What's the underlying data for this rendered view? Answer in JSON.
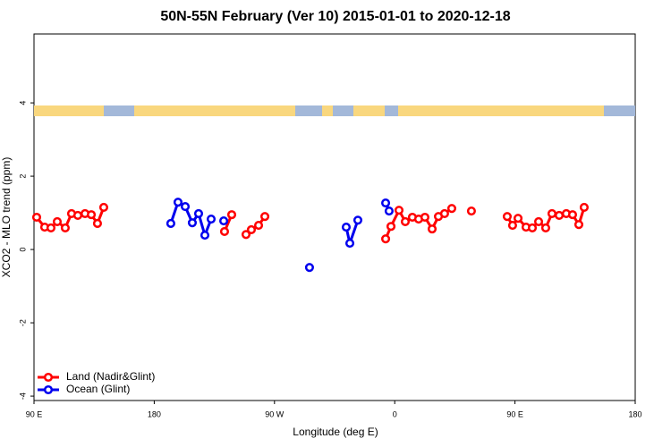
{
  "chart_data": {
    "type": "line",
    "title": "50N-55N February (Ver 10)   2015-01-01 to 2020-12-18",
    "x_label": "Longitude (deg E)",
    "y_label": "XCO2 - MLO trend (ppm)",
    "xlim": [
      90,
      540
    ],
    "xticks": [
      {
        "value": 90,
        "label": "90 E"
      },
      {
        "value": 180,
        "label": "180"
      },
      {
        "value": 270,
        "label": "90 W"
      },
      {
        "value": 360,
        "label": "0"
      },
      {
        "value": 450,
        "label": "90 E"
      },
      {
        "value": 540,
        "label": "180"
      }
    ],
    "ylim": [
      -4.12,
      5.88
    ],
    "yticks": [
      -4,
      -2,
      0,
      2,
      4
    ],
    "legend": "bottom-left",
    "series": [
      {
        "name": "Land (Nadir&Glint)",
        "color": "#ff0000",
        "x": [
          92.0,
          98.0,
          102.7,
          107.4,
          113.4,
          118.1,
          122.8,
          128.2,
          132.9,
          137.5,
          142.2,
          null,
          232.6,
          238.0,
          null,
          248.7,
          252.7,
          258.1,
          262.8,
          null,
          353.2,
          357.2,
          363.2,
          367.9,
          373.2,
          377.9,
          382.6,
          388.0,
          392.7,
          397.3,
          402.7,
          null,
          417.4,
          null,
          444.2,
          448.2,
          452.3,
          458.3,
          463.0,
          467.7,
          473.0,
          477.7,
          483.1,
          488.4,
          493.1,
          497.8,
          501.8
        ],
        "values": [
          0.88,
          0.61,
          0.59,
          0.76,
          0.59,
          0.98,
          0.93,
          0.98,
          0.95,
          0.71,
          1.15,
          null,
          0.49,
          0.95,
          null,
          0.41,
          0.54,
          0.66,
          0.9,
          null,
          0.29,
          0.63,
          1.07,
          0.76,
          0.88,
          0.83,
          0.88,
          0.56,
          0.9,
          0.98,
          1.12,
          null,
          1.05,
          null,
          0.9,
          0.66,
          0.85,
          0.61,
          0.59,
          0.76,
          0.59,
          0.98,
          0.93,
          0.98,
          0.95,
          0.68,
          1.15
        ]
      },
      {
        "name": "Ocean (Glint)",
        "color": "#0000ee",
        "x": [
          192.4,
          197.8,
          203.2,
          208.5,
          213.2,
          217.9,
          222.6,
          null,
          232.0,
          null,
          296.2,
          null,
          323.7,
          326.4,
          332.4,
          null,
          353.2,
          355.8
        ],
        "values": [
          0.71,
          1.29,
          1.17,
          0.73,
          0.98,
          0.39,
          0.83,
          null,
          0.78,
          null,
          -0.49,
          null,
          0.61,
          0.17,
          0.8,
          null,
          1.27,
          1.05
        ]
      }
    ]
  }
}
